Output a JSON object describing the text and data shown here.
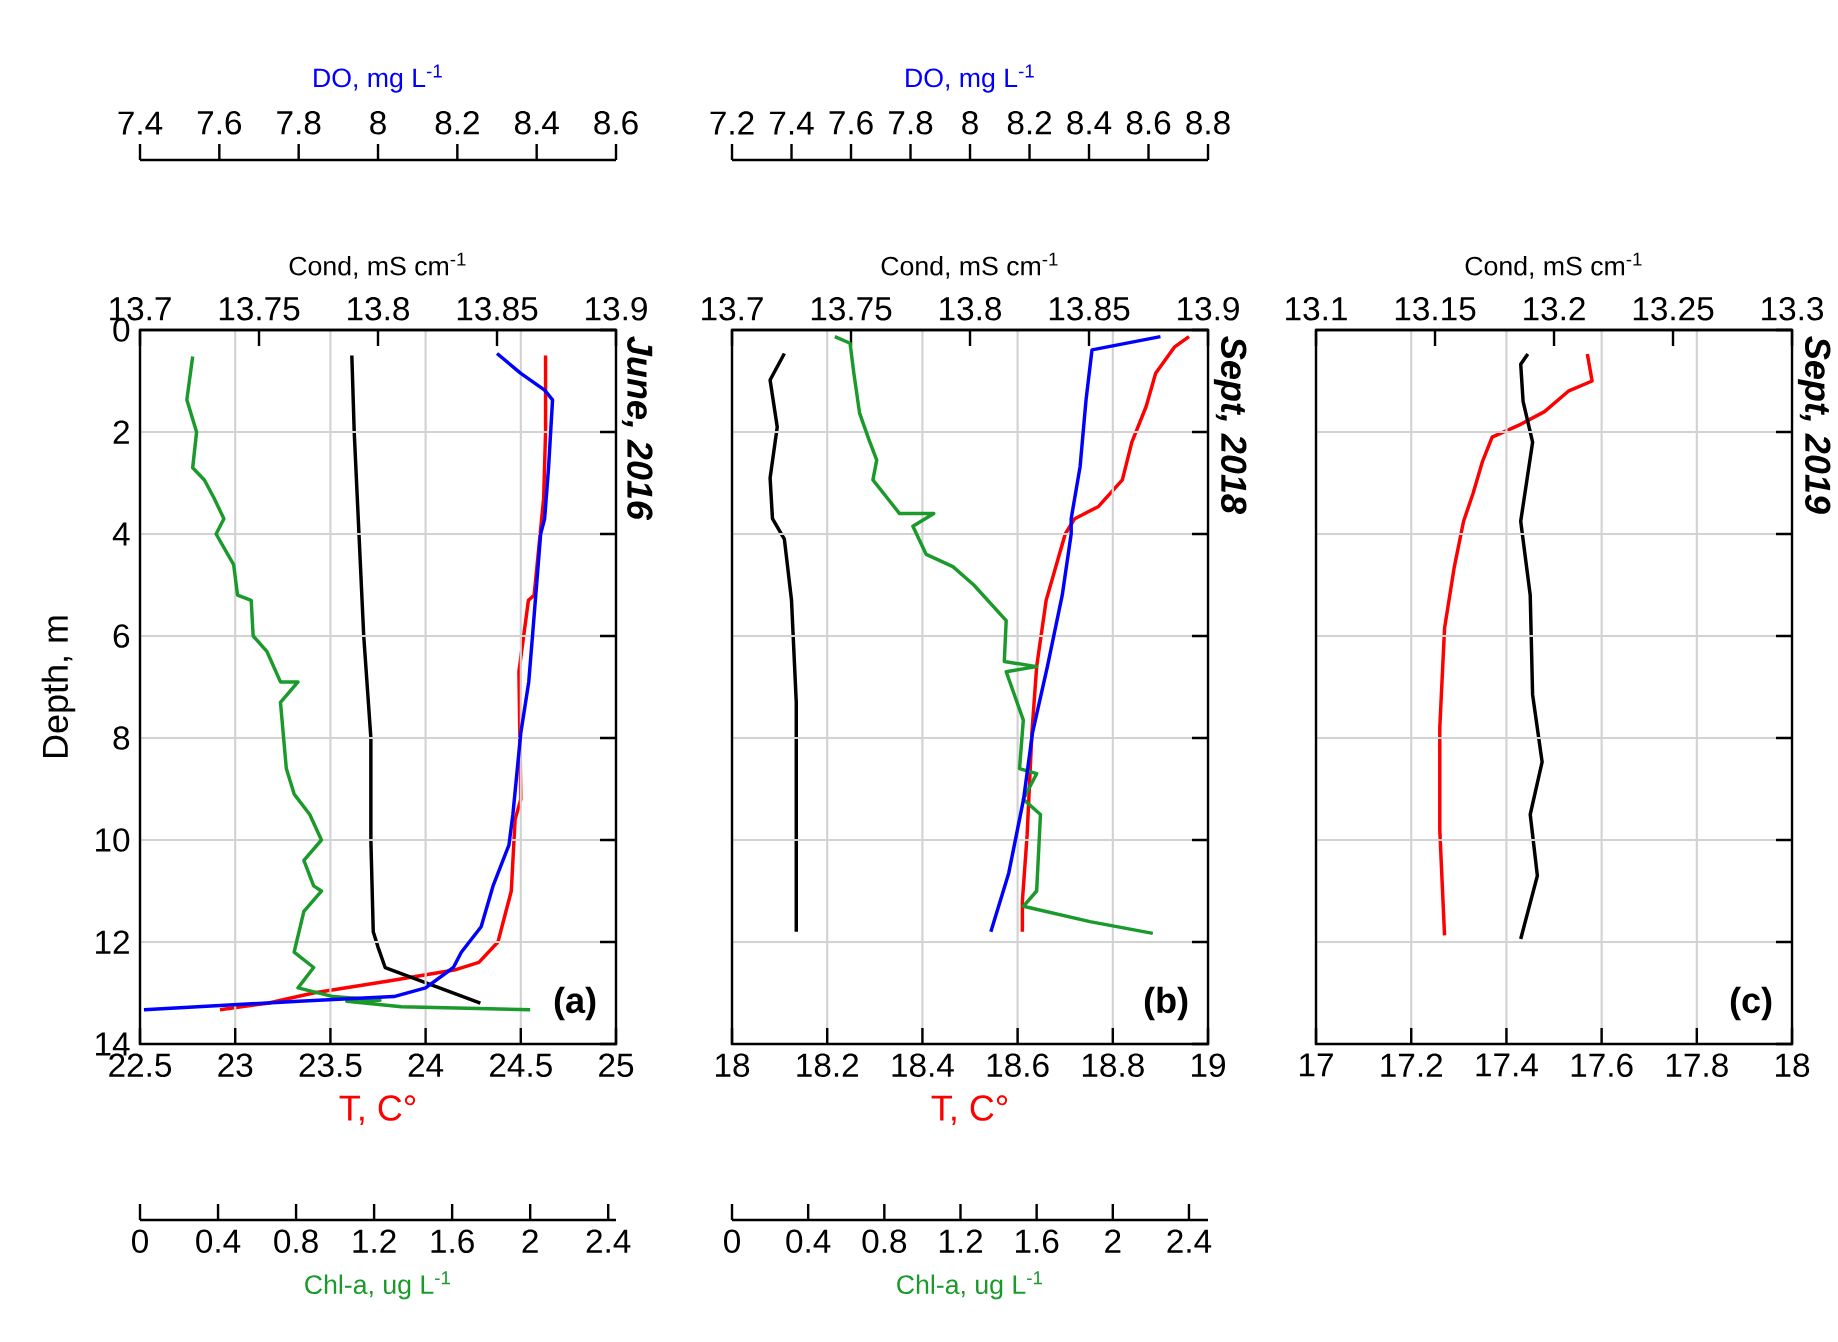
{
  "chart_data": [
    {
      "type": "line",
      "xlabel": "T, C°",
      "x2label": "Cond, mS cm$^{-1}$",
      "ylabel": "Depth, m",
      "xlim": [
        22.5,
        25
      ],
      "xticks": [
        22.5,
        23,
        23.5,
        24,
        24.5,
        25
      ],
      "x2lim": [
        13.7,
        13.9
      ],
      "x2ticks": [
        13.7,
        13.75,
        13.8,
        13.85,
        13.9
      ],
      "ylim": [
        14,
        0
      ],
      "yticks": [
        0,
        2,
        4,
        6,
        8,
        10,
        12,
        14
      ],
      "grid": true,
      "annotations": [
        "(a)",
        "June, 2016"
      ],
      "series": [
        {
          "color": "#ff0000",
          "x": [
            24.63,
            24.63,
            24.62,
            24.57,
            24.54,
            24.49,
            24.5,
            24.47,
            24.45,
            24.38,
            24.28,
            24.15,
            23.83,
            23.41,
            23.17,
            22.92
          ],
          "values": [
            0.5,
            2,
            3.3,
            5.2,
            5.3,
            6.7,
            9.2,
            9.6,
            11,
            12,
            12.4,
            12.55,
            12.75,
            13,
            13.2,
            13.33
          ]
        },
        {
          "color": "#000000",
          "axis": "x2",
          "x": [
            13.789,
            13.79,
            13.792,
            13.794,
            13.797,
            13.797,
            13.798,
            13.8,
            13.803,
            13.843
          ],
          "values": [
            0.5,
            2,
            4,
            6,
            8,
            10,
            11.8,
            12.1,
            12.5,
            13.2
          ]
        }
      ]
    },
    {
      "type": "line",
      "xlabel": "Chl-a, ug L$^{-1}$",
      "x2label": "DO, mg L$^{-1}$",
      "xlim": [
        0,
        2.44
      ],
      "xticks": [
        0,
        0.4,
        0.8,
        1.2,
        1.6,
        2,
        2.4
      ],
      "x2lim": [
        7.4,
        8.6
      ],
      "x2ticks": [
        7.4,
        7.6,
        7.8,
        8,
        8.2,
        8.4,
        8.6
      ],
      "ylim": [
        14,
        0
      ],
      "tick_labels": "x",
      "series": [
        {
          "color": "#0000ff",
          "axis": "x2",
          "x": [
            8.3,
            8.36,
            8.42,
            8.44,
            8.43,
            8.42,
            8.41,
            8.39,
            8.38,
            8.36,
            8.34,
            8.33,
            8.29,
            8.26,
            8.21,
            8.19,
            8.12,
            8.04,
            7.8,
            7.41
          ],
          "values": [
            0.46,
            0.85,
            1.18,
            1.37,
            2.7,
            3.7,
            4,
            5.95,
            6.9,
            7.9,
            9.5,
            10.1,
            10.9,
            11.7,
            12.2,
            12.5,
            12.9,
            13.07,
            13.16,
            13.33
          ]
        },
        {
          "color": "#1a9a2a",
          "x": [
            0.27,
            0.24,
            0.29,
            0.27,
            0.33,
            0.38,
            0.43,
            0.39,
            0.48,
            0.5,
            0.57,
            0.58,
            0.65,
            0.72,
            0.81,
            0.72,
            0.75,
            0.79,
            0.87,
            0.93,
            0.84,
            0.89,
            0.93,
            0.84,
            0.79,
            0.89,
            0.81,
            0.99,
            1.23,
            1.06,
            1.34,
            2.0
          ],
          "values": [
            0.52,
            1.37,
            2,
            2.7,
            2.94,
            3.3,
            3.7,
            4,
            4.6,
            5.2,
            5.3,
            6,
            6.3,
            6.9,
            6.9,
            7.3,
            8.6,
            9.1,
            9.5,
            10,
            10.4,
            10.9,
            11,
            11.4,
            12.2,
            12.5,
            12.9,
            13.07,
            13.14,
            13.16,
            13.27,
            13.33
          ]
        }
      ]
    },
    {
      "type": "line",
      "xlabel": "T, C°",
      "x2label": "Cond, mS cm$^{-1}$",
      "xlim": [
        18,
        19
      ],
      "xticks": [
        18,
        18.2,
        18.4,
        18.6,
        18.8,
        19
      ],
      "x2lim": [
        13.7,
        13.9
      ],
      "x2ticks": [
        13.7,
        13.75,
        13.8,
        13.85,
        13.9
      ],
      "ylim": [
        14,
        0
      ],
      "yticks": [
        0,
        2,
        4,
        6,
        8,
        10,
        12,
        14
      ],
      "grid": true,
      "tick_labels": "x",
      "annotations": [
        "(b)",
        "Sept, 2018"
      ],
      "series": [
        {
          "color": "#ff0000",
          "x": [
            18.96,
            18.93,
            18.89,
            18.87,
            18.84,
            18.82,
            18.77,
            18.72,
            18.7,
            18.66,
            18.64,
            18.63,
            18.62,
            18.61,
            18.61
          ],
          "values": [
            0.13,
            0.33,
            0.85,
            1.5,
            2.2,
            2.94,
            3.46,
            3.7,
            4,
            5.3,
            6.6,
            7.9,
            9.9,
            11.2,
            11.8
          ]
        },
        {
          "color": "#000000",
          "axis": "x2",
          "x": [
            13.722,
            13.716,
            13.719,
            13.716,
            13.717,
            13.722,
            13.725,
            13.727,
            13.727
          ],
          "values": [
            0.46,
            0.98,
            1.9,
            2.9,
            3.7,
            4.1,
            5.3,
            7.3,
            11.8
          ]
        }
      ]
    },
    {
      "type": "line",
      "xlabel": "Chl-a, ug L$^{-1}$",
      "x2label": "DO, mg L$^{-1}$",
      "xlim": [
        0,
        2.5
      ],
      "xticks": [
        0,
        0.4,
        0.8,
        1.2,
        1.6,
        2,
        2.4
      ],
      "x2lim": [
        7.2,
        8.8
      ],
      "x2ticks": [
        7.2,
        7.4,
        7.6,
        7.8,
        8,
        8.2,
        8.4,
        8.6,
        8.8
      ],
      "ylim": [
        14,
        0
      ],
      "tick_labels": "x",
      "series": [
        {
          "color": "#0000ff",
          "axis": "x2",
          "x": [
            8.64,
            8.41,
            8.39,
            8.37,
            8.34,
            8.34,
            8.31,
            8.26,
            8.21,
            8.18,
            8.13,
            8.07
          ],
          "values": [
            0.13,
            0.39,
            1.37,
            2.68,
            3.7,
            4,
            5.2,
            6.6,
            7.9,
            9.2,
            10.65,
            11.8
          ]
        },
        {
          "color": "#1a9a2a",
          "x": [
            0.54,
            0.62,
            0.64,
            0.67,
            0.72,
            0.76,
            0.74,
            0.81,
            0.88,
            1.06,
            0.95,
            1.02,
            1.16,
            1.27,
            1.44,
            1.43,
            1.6,
            1.44,
            1.53,
            1.51,
            1.6,
            1.53,
            1.62,
            1.6,
            1.53,
            1.88,
            2.21
          ],
          "values": [
            0.13,
            0.26,
            0.85,
            1.63,
            2.16,
            2.55,
            2.94,
            3.27,
            3.6,
            3.6,
            3.85,
            4.4,
            4.64,
            5,
            5.7,
            6.5,
            6.6,
            6.7,
            7.65,
            8.6,
            8.7,
            9.2,
            9.5,
            11,
            11.3,
            11.6,
            11.83
          ]
        }
      ]
    },
    {
      "type": "line",
      "x2label": "Cond, mS cm$^{-1}$",
      "xlim": [
        17,
        18
      ],
      "xticks": [
        17,
        17.2,
        17.4,
        17.6,
        17.8,
        18
      ],
      "x2lim": [
        13.1,
        13.3
      ],
      "x2ticks": [
        13.1,
        13.15,
        13.2,
        13.25,
        13.3
      ],
      "ylim": [
        14,
        0
      ],
      "yticks": [
        0,
        2,
        4,
        6,
        8,
        10,
        12,
        14
      ],
      "grid": true,
      "tick_labels": "x",
      "annotations": [
        "(c)",
        "Sept, 2019"
      ],
      "series": [
        {
          "color": "#ff0000",
          "x": [
            17.57,
            17.58,
            17.53,
            17.48,
            17.43,
            17.37,
            17.35,
            17.33,
            17.31,
            17.29,
            17.27,
            17.26,
            17.26,
            17.27
          ],
          "values": [
            0.47,
            1,
            1.2,
            1.6,
            1.85,
            2.1,
            2.57,
            3.2,
            3.75,
            4.67,
            5.85,
            7.8,
            9.8,
            11.87
          ]
        },
        {
          "color": "#000000",
          "axis": "x2",
          "x": [
            13.189,
            13.186,
            13.187,
            13.191,
            13.186,
            13.19,
            13.191,
            13.195,
            13.19,
            13.193,
            13.186
          ],
          "values": [
            0.47,
            0.67,
            1.4,
            2.2,
            3.75,
            5.2,
            7.15,
            8.47,
            9.5,
            10.7,
            11.94
          ]
        }
      ]
    }
  ]
}
